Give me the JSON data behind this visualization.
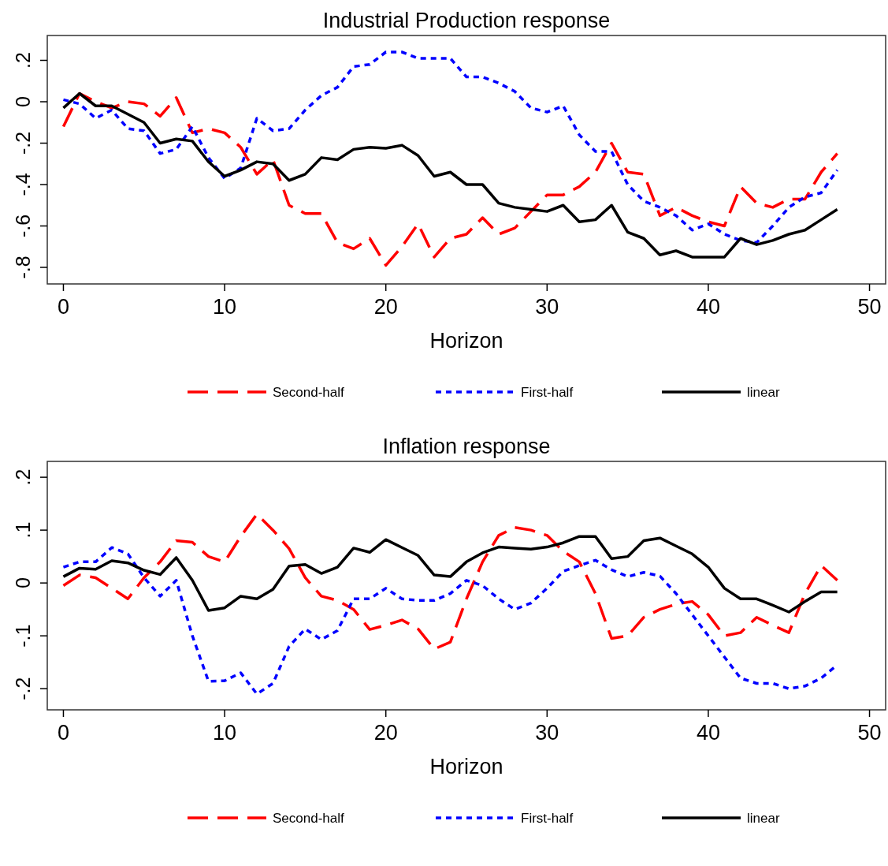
{
  "chart_data": [
    {
      "type": "line",
      "title": "Industrial Production response",
      "xlabel": "Horizon",
      "x": [
        0,
        1,
        2,
        3,
        4,
        5,
        6,
        7,
        8,
        9,
        10,
        11,
        12,
        13,
        14,
        15,
        16,
        17,
        18,
        19,
        20,
        21,
        22,
        23,
        24,
        25,
        26,
        27,
        28,
        29,
        30,
        31,
        32,
        33,
        34,
        35,
        36,
        37,
        38,
        39,
        40,
        41,
        42,
        43,
        44,
        45,
        46,
        47,
        48
      ],
      "xlim": [
        -1,
        51
      ],
      "xticks": [
        0,
        10,
        20,
        30,
        40,
        50
      ],
      "ylim": [
        -0.88,
        0.32
      ],
      "yticks": [
        {
          "value": 0.2,
          "label": ".2"
        },
        {
          "value": 0,
          "label": "0"
        },
        {
          "value": -0.2,
          "label": "-.2"
        },
        {
          "value": -0.4,
          "label": "-.4"
        },
        {
          "value": -0.6,
          "label": "-.6"
        },
        {
          "value": -0.8,
          "label": "-.8"
        }
      ],
      "grid": false,
      "legend": "bottom",
      "series": [
        {
          "name": "Second-half",
          "color": "#ff0000",
          "line_style": "dashed",
          "values": [
            -0.12,
            0.04,
            0.0,
            -0.03,
            0.0,
            -0.01,
            -0.07,
            0.02,
            -0.15,
            -0.13,
            -0.15,
            -0.22,
            -0.35,
            -0.28,
            -0.5,
            -0.54,
            -0.54,
            -0.68,
            -0.71,
            -0.66,
            -0.79,
            -0.7,
            -0.59,
            -0.75,
            -0.66,
            -0.64,
            -0.56,
            -0.64,
            -0.61,
            -0.53,
            -0.45,
            -0.45,
            -0.41,
            -0.34,
            -0.2,
            -0.34,
            -0.35,
            -0.55,
            -0.51,
            -0.55,
            -0.58,
            -0.6,
            -0.41,
            -0.49,
            -0.51,
            -0.47,
            -0.47,
            -0.34,
            -0.25
          ]
        },
        {
          "name": "First-half",
          "color": "#0000ff",
          "line_style": "dotted",
          "values": [
            0.01,
            -0.01,
            -0.08,
            -0.04,
            -0.13,
            -0.14,
            -0.25,
            -0.23,
            -0.12,
            -0.27,
            -0.37,
            -0.32,
            -0.08,
            -0.14,
            -0.13,
            -0.04,
            0.03,
            0.07,
            0.17,
            0.18,
            0.24,
            0.24,
            0.21,
            0.21,
            0.21,
            0.12,
            0.12,
            0.09,
            0.05,
            -0.03,
            -0.05,
            -0.02,
            -0.16,
            -0.24,
            -0.24,
            -0.4,
            -0.48,
            -0.51,
            -0.55,
            -0.62,
            -0.59,
            -0.64,
            -0.67,
            -0.68,
            -0.6,
            -0.51,
            -0.46,
            -0.44,
            -0.33
          ]
        },
        {
          "name": "linear",
          "color": "#000000",
          "line_style": "solid",
          "values": [
            -0.03,
            0.04,
            -0.02,
            -0.02,
            -0.06,
            -0.1,
            -0.2,
            -0.18,
            -0.19,
            -0.29,
            -0.36,
            -0.33,
            -0.29,
            -0.3,
            -0.38,
            -0.35,
            -0.27,
            -0.28,
            -0.23,
            -0.22,
            -0.225,
            -0.21,
            -0.26,
            -0.36,
            -0.34,
            -0.4,
            -0.4,
            -0.49,
            -0.51,
            -0.52,
            -0.53,
            -0.5,
            -0.58,
            -0.57,
            -0.5,
            -0.63,
            -0.66,
            -0.74,
            -0.72,
            -0.75,
            -0.75,
            -0.75,
            -0.66,
            -0.69,
            -0.67,
            -0.64,
            -0.62,
            -0.57,
            -0.52
          ]
        }
      ]
    },
    {
      "type": "line",
      "title": "Inflation response",
      "xlabel": "Horizon",
      "x": [
        0,
        1,
        2,
        3,
        4,
        5,
        6,
        7,
        8,
        9,
        10,
        11,
        12,
        13,
        14,
        15,
        16,
        17,
        18,
        19,
        20,
        21,
        22,
        23,
        24,
        25,
        26,
        27,
        28,
        29,
        30,
        31,
        32,
        33,
        34,
        35,
        36,
        37,
        38,
        39,
        40,
        41,
        42,
        43,
        44,
        45,
        46,
        47,
        48
      ],
      "xlim": [
        -1,
        51
      ],
      "xticks": [
        0,
        10,
        20,
        30,
        40,
        50
      ],
      "ylim": [
        -0.24,
        0.23
      ],
      "yticks": [
        {
          "value": 0.2,
          "label": ".2"
        },
        {
          "value": 0.1,
          "label": ".1"
        },
        {
          "value": 0,
          "label": "0"
        },
        {
          "value": -0.1,
          "label": "-.1"
        },
        {
          "value": -0.2,
          "label": "-.2"
        }
      ],
      "grid": false,
      "legend": "bottom",
      "series": [
        {
          "name": "Second-half",
          "color": "#ff0000",
          "line_style": "dashed",
          "values": [
            -0.005,
            0.015,
            0.01,
            -0.01,
            -0.03,
            0.01,
            0.04,
            0.08,
            0.077,
            0.05,
            0.04,
            0.088,
            0.13,
            0.1,
            0.065,
            0.01,
            -0.025,
            -0.033,
            -0.05,
            -0.088,
            -0.08,
            -0.07,
            -0.087,
            -0.125,
            -0.112,
            -0.03,
            0.04,
            0.09,
            0.105,
            0.1,
            0.09,
            0.06,
            0.04,
            -0.02,
            -0.105,
            -0.1,
            -0.065,
            -0.05,
            -0.04,
            -0.035,
            -0.06,
            -0.1,
            -0.094,
            -0.065,
            -0.08,
            -0.094,
            -0.02,
            0.033,
            0.005
          ]
        },
        {
          "name": "First-half",
          "color": "#0000ff",
          "line_style": "dotted",
          "values": [
            0.03,
            0.04,
            0.04,
            0.067,
            0.055,
            0.01,
            -0.025,
            0.005,
            -0.1,
            -0.186,
            -0.185,
            -0.17,
            -0.21,
            -0.19,
            -0.12,
            -0.087,
            -0.107,
            -0.09,
            -0.03,
            -0.03,
            -0.01,
            -0.03,
            -0.033,
            -0.033,
            -0.02,
            0.005,
            -0.005,
            -0.03,
            -0.05,
            -0.038,
            -0.01,
            0.022,
            0.033,
            0.043,
            0.025,
            0.012,
            0.02,
            0.013,
            -0.02,
            -0.06,
            -0.1,
            -0.14,
            -0.18,
            -0.19,
            -0.19,
            -0.2,
            -0.195,
            -0.18,
            -0.155
          ]
        },
        {
          "name": "linear",
          "color": "#000000",
          "line_style": "solid",
          "values": [
            0.012,
            0.028,
            0.026,
            0.042,
            0.038,
            0.024,
            0.016,
            0.048,
            0.005,
            -0.052,
            -0.047,
            -0.025,
            -0.03,
            -0.012,
            0.032,
            0.035,
            0.018,
            0.03,
            0.066,
            0.058,
            0.082,
            0.067,
            0.052,
            0.015,
            0.012,
            0.04,
            0.057,
            0.068,
            0.066,
            0.064,
            0.068,
            0.076,
            0.088,
            0.088,
            0.046,
            0.05,
            0.08,
            0.085,
            0.07,
            0.055,
            0.03,
            -0.01,
            -0.03,
            -0.03,
            -0.042,
            -0.055,
            -0.035,
            -0.017,
            -0.017
          ]
        }
      ]
    }
  ]
}
